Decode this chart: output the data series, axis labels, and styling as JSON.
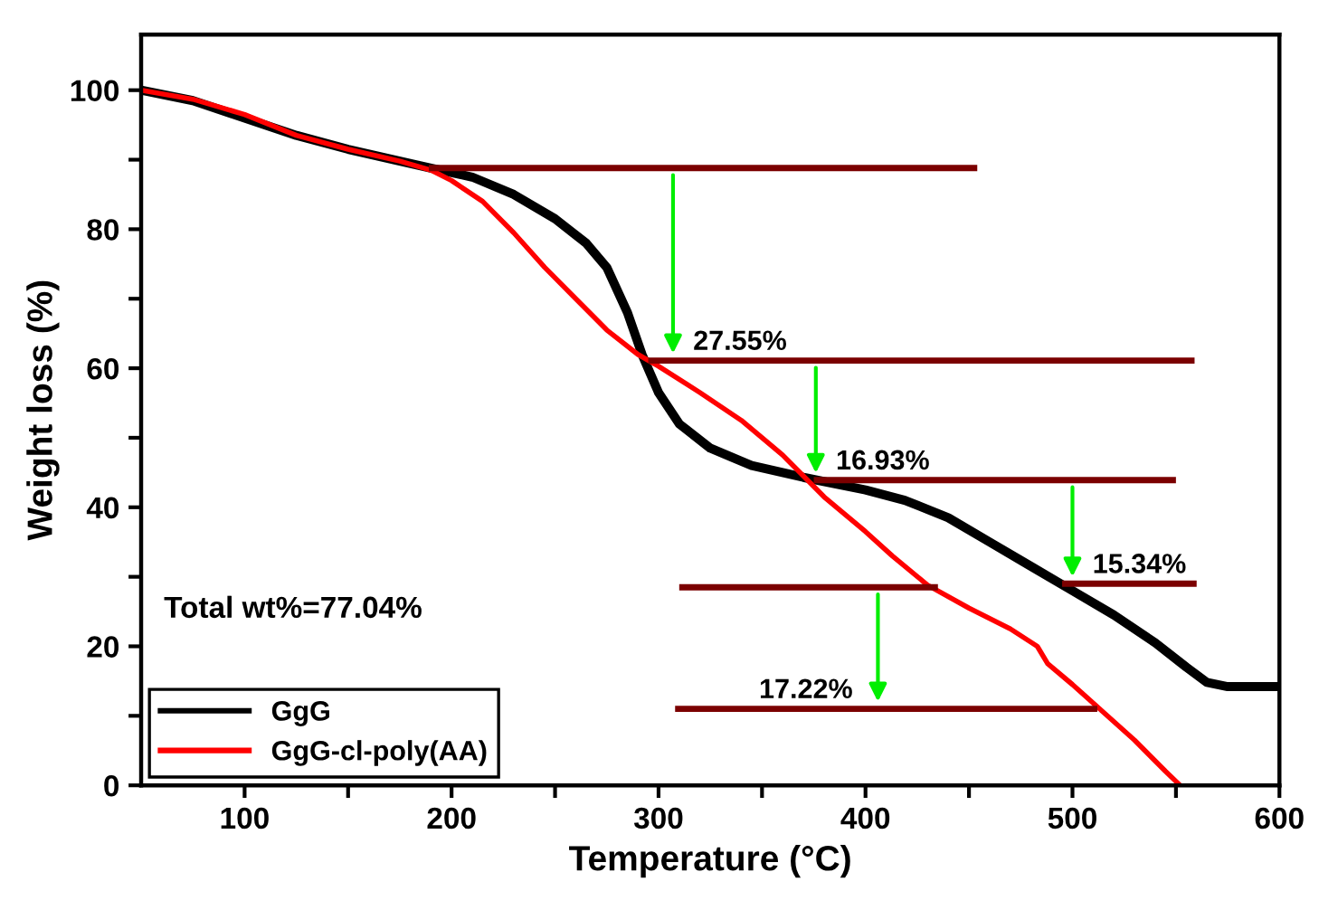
{
  "chart_data": {
    "type": "line",
    "xlabel": "Temperature (°C)",
    "ylabel": "Weight loss (%)",
    "xlim": [
      50,
      600
    ],
    "ylim": [
      0,
      108
    ],
    "xticks": [
      100,
      {
        "value": 150,
        "label": null
      },
      200,
      {
        "value": 250,
        "label": null
      },
      300,
      {
        "value": 350,
        "label": null
      },
      400,
      {
        "value": 450,
        "label": null
      },
      500,
      {
        "value": 550,
        "label": null
      },
      600
    ],
    "yticks": [
      0,
      {
        "value": 10,
        "label": null
      },
      20,
      {
        "value": 30,
        "label": null
      },
      40,
      {
        "value": 50,
        "label": null
      },
      60,
      {
        "value": 70,
        "label": null
      },
      80,
      {
        "value": 90,
        "label": null
      },
      100
    ],
    "grid": false,
    "legend": "bottom left",
    "marker": "none",
    "line_style": "solid",
    "series": [
      {
        "name": "GgG",
        "color": "#000000",
        "x": [
          50,
          75,
          100,
          125,
          150,
          175,
          190,
          210,
          230,
          250,
          265,
          275,
          285,
          292,
          300,
          310,
          325,
          345,
          370,
          400,
          419,
          440,
          460,
          480,
          500,
          520,
          540,
          555,
          565,
          575,
          600
        ],
        "values": [
          100,
          98.5,
          96,
          93.5,
          91.5,
          89.8,
          88.8,
          87.5,
          85,
          81.5,
          78,
          74.5,
          68,
          62,
          56.5,
          52,
          48.5,
          46,
          44.3,
          42.5,
          41,
          38.5,
          35,
          31.5,
          28,
          24.5,
          20.5,
          17,
          14.8,
          14.2,
          14.2
        ]
      },
      {
        "name": "GgG-cl-poly(AA)",
        "color": "#ff0000",
        "x": [
          50,
          75,
          100,
          125,
          150,
          175,
          190,
          200,
          215,
          230,
          245,
          260,
          275,
          290,
          300,
          320,
          340,
          360,
          380,
          400,
          413,
          430,
          450,
          470,
          483,
          488,
          500,
          515,
          530,
          545,
          552
        ],
        "values": [
          100,
          98.7,
          96.5,
          93.5,
          91.5,
          89.8,
          88.5,
          87,
          84,
          79.5,
          74.5,
          70,
          65.5,
          62,
          60.3,
          56.5,
          52.5,
          47.5,
          41.5,
          36.5,
          33,
          28.8,
          25.5,
          22.5,
          20,
          17.5,
          14.5,
          10.5,
          6.5,
          2,
          0
        ]
      },
      {
        "type": "line",
        "color": "#7b0000",
        "x": [
          189,
          454
        ],
        "values": [
          88.8,
          88.8
        ]
      },
      {
        "type": "line",
        "color": "#7b0000",
        "x": [
          295,
          559
        ],
        "values": [
          61.1,
          61.1
        ]
      },
      {
        "type": "line",
        "color": "#7b0000",
        "x": [
          375,
          550
        ],
        "values": [
          43.9,
          43.9
        ]
      },
      {
        "type": "line",
        "color": "#7b0000",
        "x": [
          495,
          560
        ],
        "values": [
          29.0,
          29.0
        ]
      },
      {
        "type": "line",
        "color": "#7b0000",
        "x": [
          310,
          435
        ],
        "values": [
          28.5,
          28.5
        ]
      },
      {
        "type": "line",
        "color": "#7b0000",
        "x": [
          308,
          512
        ],
        "values": [
          11.0,
          11.0
        ]
      }
    ],
    "annotations": [
      {
        "text": "27.55%",
        "x": 307,
        "y": 61.1
      },
      {
        "text": "16.93%",
        "x": 376,
        "y": 43.9
      },
      {
        "text": "15.34%",
        "x": 500,
        "y": 29.0
      },
      {
        "text": "17.22%",
        "x": 406,
        "y": 11.0
      },
      "Total wt%=77.04%"
    ]
  }
}
